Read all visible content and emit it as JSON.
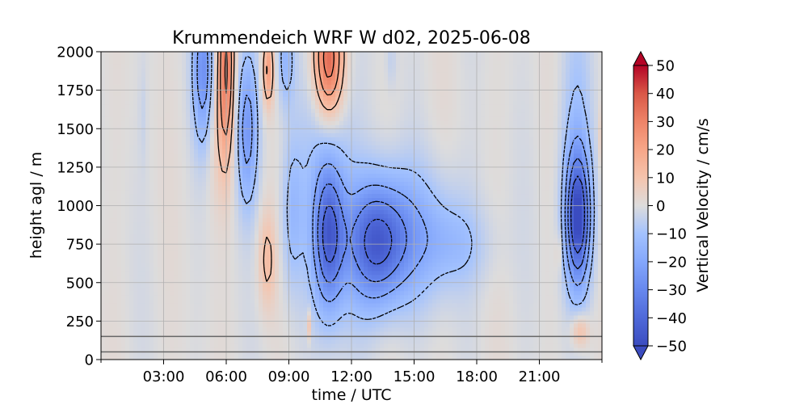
{
  "chart_data": {
    "type": "heatmap",
    "title": "Krummendeich WRF W d02, 2025-06-08",
    "xlabel": "time / UTC",
    "ylabel": "height agl / m",
    "xlim_hours": [
      0,
      24
    ],
    "ylim": [
      0,
      2000
    ],
    "x_ticks": [
      {
        "hour": 3,
        "label": "03:00"
      },
      {
        "hour": 6,
        "label": "06:00"
      },
      {
        "hour": 9,
        "label": "09:00"
      },
      {
        "hour": 12,
        "label": "12:00"
      },
      {
        "hour": 15,
        "label": "15:00"
      },
      {
        "hour": 18,
        "label": "18:00"
      },
      {
        "hour": 21,
        "label": "21:00"
      }
    ],
    "x_minor_ticks_hours": [
      0,
      24
    ],
    "y_ticks": [
      {
        "value": 0,
        "label": "0"
      },
      {
        "value": 250,
        "label": "250"
      },
      {
        "value": 500,
        "label": "500"
      },
      {
        "value": 750,
        "label": "750"
      },
      {
        "value": 1000,
        "label": "1000"
      },
      {
        "value": 1250,
        "label": "1250"
      },
      {
        "value": 1500,
        "label": "1500"
      },
      {
        "value": 1750,
        "label": "1750"
      },
      {
        "value": 2000,
        "label": "2000"
      }
    ],
    "grid": true,
    "horizontal_lines_m": [
      50,
      150
    ],
    "colorbar": {
      "label": "Vertical Velocity / cm/s",
      "range": [
        -50,
        50
      ],
      "extend": "both",
      "colormap": "coolwarm",
      "ticks": [
        {
          "value": 50,
          "label": "50"
        },
        {
          "value": 40,
          "label": "40"
        },
        {
          "value": 30,
          "label": "30"
        },
        {
          "value": 20,
          "label": "20"
        },
        {
          "value": 10,
          "label": "10"
        },
        {
          "value": 0,
          "label": "0"
        },
        {
          "value": -10,
          "label": "−10"
        },
        {
          "value": -20,
          "label": "−20"
        },
        {
          "value": -30,
          "label": "−30"
        },
        {
          "value": -40,
          "label": "−40"
        },
        {
          "value": -50,
          "label": "−50"
        }
      ]
    },
    "features": [
      {
        "t": 2.0,
        "z": 1600,
        "st": 0.12,
        "sz": 250,
        "w": -3
      },
      {
        "t": 4.9,
        "z": 1880,
        "st": 0.35,
        "sz": 330,
        "w": -26
      },
      {
        "t": 6.0,
        "z": 1880,
        "st": 0.28,
        "sz": 420,
        "w": 30
      },
      {
        "t": 5.5,
        "z": 1480,
        "st": 0.35,
        "sz": 350,
        "w": 5
      },
      {
        "t": 7.0,
        "z": 1500,
        "st": 0.38,
        "sz": 350,
        "w": -24
      },
      {
        "t": 8.0,
        "z": 1880,
        "st": 0.2,
        "sz": 160,
        "w": 22
      },
      {
        "t": 8.85,
        "z": 1960,
        "st": 0.3,
        "sz": 220,
        "w": -14
      },
      {
        "t": 7.95,
        "z": 650,
        "st": 0.3,
        "sz": 220,
        "w": 12
      },
      {
        "t": 9.15,
        "z": 950,
        "st": 0.38,
        "sz": 360,
        "w": -12
      },
      {
        "t": 10.9,
        "z": 1940,
        "st": 0.5,
        "sz": 260,
        "w": 38
      },
      {
        "t": 10.9,
        "z": 800,
        "st": 0.5,
        "sz": 320,
        "w": -34
      },
      {
        "t": 10.9,
        "z": 1150,
        "st": 0.95,
        "sz": 650,
        "w": -10
      },
      {
        "t": 9.95,
        "z": 225,
        "st": 0.08,
        "sz": 70,
        "w": 12
      },
      {
        "t": 13.2,
        "z": 750,
        "st": 1.0,
        "sz": 280,
        "w": -35
      },
      {
        "t": 14.7,
        "z": 820,
        "st": 1.8,
        "sz": 300,
        "w": -16
      },
      {
        "t": 17.0,
        "z": 740,
        "st": 1.2,
        "sz": 180,
        "w": -7
      },
      {
        "t": 13.9,
        "z": 1950,
        "st": 0.18,
        "sz": 130,
        "w": -5
      },
      {
        "t": 21.9,
        "z": 700,
        "st": 0.08,
        "sz": 90,
        "w": 8
      },
      {
        "t": 22.85,
        "z": 920,
        "st": 0.42,
        "sz": 300,
        "w": -45
      },
      {
        "t": 22.75,
        "z": 1350,
        "st": 0.55,
        "sz": 650,
        "w": -10
      },
      {
        "t": 22.95,
        "z": 190,
        "st": 0.3,
        "sz": 80,
        "w": 14
      },
      {
        "t": 24.0,
        "z": 1450,
        "st": 0.1,
        "sz": 140,
        "w": 8
      }
    ],
    "contour_levels_cm_s": [
      -40,
      -30,
      -20,
      -10,
      10,
      20,
      30
    ]
  }
}
